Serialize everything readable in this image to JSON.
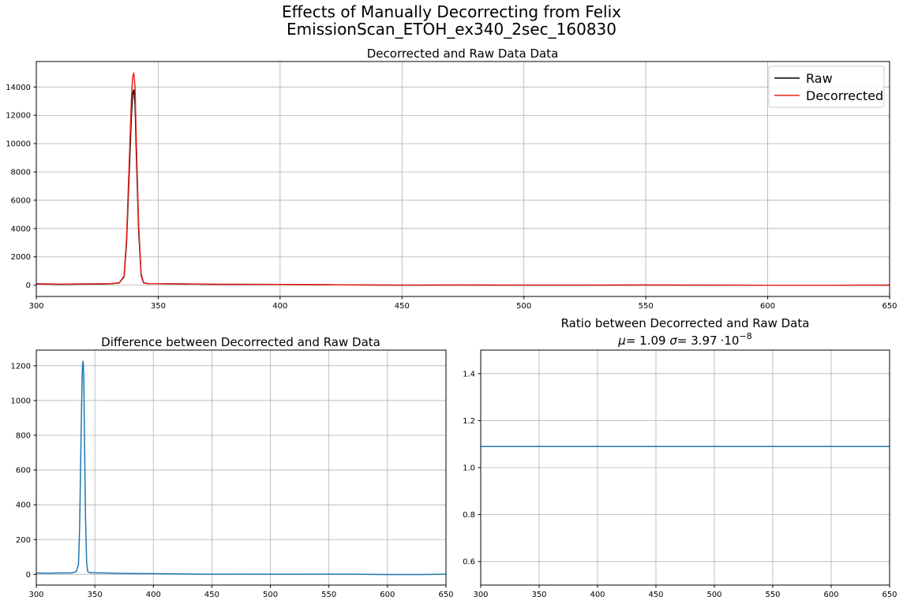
{
  "figure": {
    "suptitle_line1": "Effects of Manually Decorrecting from Felix",
    "suptitle_line2": "EmissionScan_ETOH_ex340_2sec_160830"
  },
  "chart_data": [
    {
      "id": "top",
      "type": "line",
      "title": "Decorrected and Raw Data Data",
      "xlabel": "",
      "ylabel": "",
      "xlim": [
        300,
        650
      ],
      "ylim": [
        -800,
        15800
      ],
      "xticks": [
        300,
        350,
        400,
        450,
        500,
        550,
        600,
        650
      ],
      "yticks": [
        0,
        2000,
        4000,
        6000,
        8000,
        10000,
        12000,
        14000
      ],
      "grid": true,
      "legend": {
        "placement": "top-right",
        "entries": [
          "Raw",
          "Decorrected"
        ]
      },
      "series": [
        {
          "name": "Raw",
          "color": "#000000",
          "x": [
            300,
            310,
            320,
            330,
            334,
            336,
            337,
            338,
            339,
            339.5,
            340,
            340.5,
            341,
            342,
            343,
            344,
            346,
            350,
            375,
            400,
            425,
            450,
            475,
            500,
            525,
            550,
            575,
            600,
            625,
            650
          ],
          "y": [
            90,
            60,
            80,
            90,
            150,
            600,
            3000,
            7500,
            12000,
            13500,
            13800,
            12800,
            9500,
            3800,
            700,
            150,
            100,
            100,
            60,
            50,
            20,
            0,
            10,
            0,
            0,
            10,
            0,
            -10,
            -10,
            0
          ]
        },
        {
          "name": "Decorrected",
          "color": "#e8221c",
          "x": [
            300,
            310,
            320,
            330,
            334,
            336,
            337,
            338,
            339,
            339.5,
            340,
            340.5,
            341,
            342,
            343,
            344,
            346,
            350,
            375,
            400,
            425,
            450,
            475,
            500,
            525,
            550,
            575,
            600,
            625,
            650
          ],
          "y": [
            100,
            70,
            90,
            100,
            160,
            650,
            3300,
            8200,
            13100,
            14700,
            15000,
            14000,
            10400,
            4200,
            800,
            170,
            110,
            110,
            65,
            55,
            22,
            0,
            11,
            0,
            0,
            11,
            0,
            -11,
            -11,
            0
          ]
        }
      ]
    },
    {
      "id": "difference",
      "type": "line",
      "title": "Difference between Decorrected and Raw Data",
      "xlabel": "",
      "ylabel": "",
      "xlim": [
        300,
        650
      ],
      "ylim": [
        -62,
        1290
      ],
      "xticks": [
        300,
        350,
        400,
        450,
        500,
        550,
        600,
        650
      ],
      "yticks": [
        0,
        200,
        400,
        600,
        800,
        1000,
        1200
      ],
      "grid": true,
      "series": [
        {
          "color": "#1f77b4",
          "x": [
            300,
            310,
            320,
            330,
            334,
            336,
            337,
            338,
            339,
            339.5,
            340,
            340.5,
            341,
            342,
            343,
            344,
            346,
            350,
            375,
            400,
            425,
            450,
            475,
            500,
            525,
            550,
            575,
            600,
            625,
            650
          ],
          "y": [
            8,
            6,
            8,
            8,
            14,
            55,
            270,
            680,
            1080,
            1210,
            1225,
            1150,
            860,
            340,
            65,
            14,
            9,
            9,
            5,
            4,
            2,
            0,
            1,
            0,
            0,
            1,
            0,
            -1,
            -1,
            0
          ]
        }
      ]
    },
    {
      "id": "ratio",
      "type": "line",
      "title": "Ratio between Decorrected and Raw Data",
      "subtitle": {
        "mu_symbol": "μ",
        "mu_value": "1.09",
        "sigma_symbol": "σ",
        "sigma_value": "3.97",
        "sigma_mult": "·10",
        "sigma_exp": "−8"
      },
      "xlabel": "",
      "ylabel": "",
      "xlim": [
        300,
        650
      ],
      "ylim": [
        0.5,
        1.5
      ],
      "xticks": [
        300,
        350,
        400,
        450,
        500,
        550,
        600,
        650
      ],
      "yticks": [
        0.6,
        0.8,
        1.0,
        1.2,
        1.4
      ],
      "ytick_labels": [
        "0.6",
        "0.8",
        "1.0",
        "1.2",
        "1.4"
      ],
      "grid": true,
      "series": [
        {
          "color": "#1f77b4",
          "x": [
            300,
            650
          ],
          "y": [
            1.09,
            1.09
          ]
        }
      ]
    }
  ]
}
